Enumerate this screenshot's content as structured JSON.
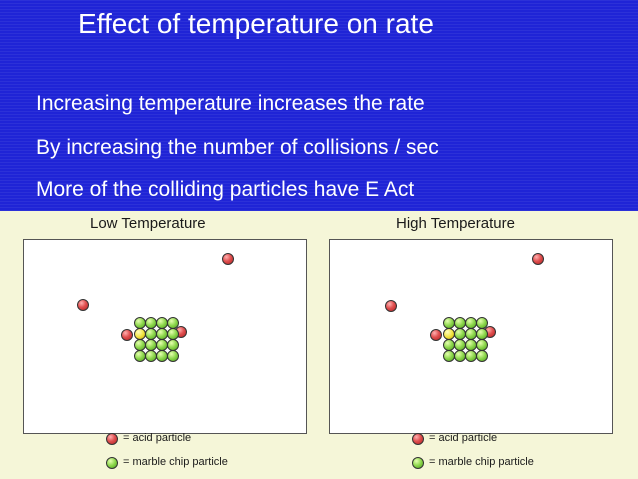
{
  "slide": {
    "title": "Effect of temperature on rate",
    "bullets": [
      "Increasing temperature increases the rate",
      "By increasing the number of collisions / sec",
      "More of the  colliding particles have  E Act"
    ]
  },
  "figure": {
    "panels": [
      {
        "label": "Low Temperature"
      },
      {
        "label": "High Temperature"
      }
    ],
    "legend": {
      "acid": "= acid particle",
      "marble": "= marble chip particle"
    }
  },
  "colors": {
    "slide_background": "#1f24d6",
    "acid_particle": "#e05050",
    "marble_particle": "#8bd64a",
    "figure_background": "#f5f6d8"
  }
}
